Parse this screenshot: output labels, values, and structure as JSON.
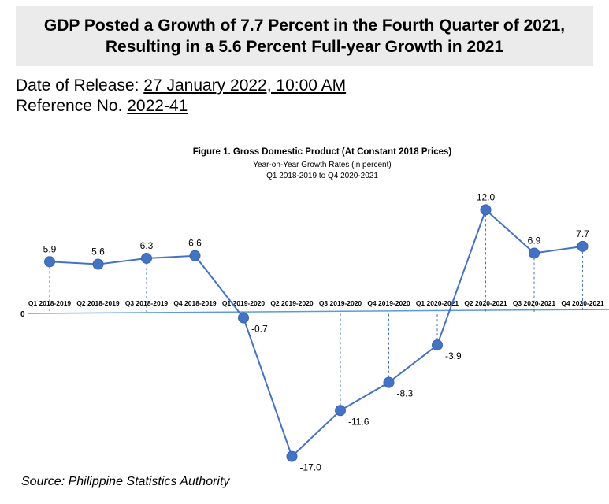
{
  "headline": {
    "line1": "GDP Posted a Growth of 7.7 Percent in the Fourth Quarter of 2021,",
    "line2": "Resulting in a 5.6 Percent Full-year Growth in 2021"
  },
  "release": {
    "date_label": "Date of Release:",
    "date_value": "27 January 2022, 10:00 AM",
    "ref_label": "Reference No.",
    "ref_value": "2022-41"
  },
  "source": "Source: Philippine Statistics Authority",
  "colors": {
    "line": "#4472c4",
    "axis": "#5b9bd5",
    "headline_bg": "#ebebeb"
  },
  "chart_data": {
    "type": "line",
    "title": "Figure 1. Gross Domestic Product (At Constant 2018 Prices)",
    "subtitle": "Year-on-Year Growth Rates (in percent)",
    "subtitle2": "Q1 2018-2019 to Q4 2020-2021",
    "categories": [
      "Q1 2018-2019",
      "Q2 2018-2019",
      "Q3 2018-2019",
      "Q4 2018-2019",
      "Q1 2019-2020",
      "Q2 2019-2020",
      "Q3 2019-2020",
      "Q4 2019-2020",
      "Q1 2020-2021",
      "Q2 2020-2021",
      "Q3 2020-2021",
      "Q4 2020-2021"
    ],
    "values": [
      5.9,
      5.6,
      6.3,
      6.6,
      -0.7,
      -17.0,
      -11.6,
      -8.3,
      -3.9,
      12.0,
      6.9,
      7.7
    ],
    "data_labels": [
      "5.9",
      "5.6",
      "6.3",
      "6.6",
      "-0.7",
      "-17.0",
      "-11.6",
      "-8.3",
      "-3.9",
      "12.0",
      "6.9",
      "7.7"
    ],
    "zero_label": "0",
    "drop_lines": true,
    "grid": false
  }
}
